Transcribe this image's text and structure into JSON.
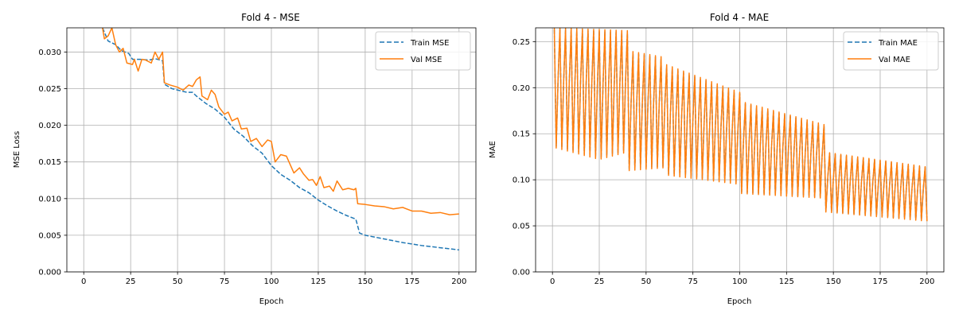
{
  "chart_data": [
    {
      "type": "line",
      "title": "Fold 4 - MSE",
      "xlabel": "Epoch",
      "ylabel": "MSE Loss",
      "xlim": [
        -9,
        209
      ],
      "ylim": [
        0,
        0.0333
      ],
      "xticks": [
        0,
        25,
        50,
        75,
        100,
        125,
        150,
        175,
        200
      ],
      "xtick_labels": [
        "0",
        "25",
        "50",
        "75",
        "100",
        "125",
        "150",
        "175",
        "200"
      ],
      "yticks": [
        0,
        0.005,
        0.01,
        0.015,
        0.02,
        0.025,
        0.03
      ],
      "ytick_labels": [
        "0.000",
        "0.005",
        "0.010",
        "0.015",
        "0.020",
        "0.025",
        "0.030"
      ],
      "grid": true,
      "legend": "top-right",
      "series": [
        {
          "name": "Train MSE",
          "color": "#1f77b4",
          "dash": "dashed",
          "points": [
            [
              10,
              0.0333
            ],
            [
              13,
              0.0315
            ],
            [
              17,
              0.031
            ],
            [
              20,
              0.0302
            ],
            [
              24,
              0.0298
            ],
            [
              26,
              0.029
            ],
            [
              30,
              0.029
            ],
            [
              35,
              0.0289
            ],
            [
              38,
              0.0291
            ],
            [
              42,
              0.0288
            ],
            [
              43,
              0.0256
            ],
            [
              47,
              0.025
            ],
            [
              55,
              0.0245
            ],
            [
              58,
              0.0245
            ],
            [
              60,
              0.024
            ],
            [
              65,
              0.023
            ],
            [
              70,
              0.0222
            ],
            [
              75,
              0.0211
            ],
            [
              80,
              0.0195
            ],
            [
              85,
              0.0185
            ],
            [
              90,
              0.0172
            ],
            [
              95,
              0.0162
            ],
            [
              100,
              0.0145
            ],
            [
              105,
              0.0133
            ],
            [
              110,
              0.0125
            ],
            [
              115,
              0.0115
            ],
            [
              120,
              0.0108
            ],
            [
              125,
              0.0098
            ],
            [
              130,
              0.009
            ],
            [
              135,
              0.0083
            ],
            [
              140,
              0.0077
            ],
            [
              145,
              0.0072
            ],
            [
              147,
              0.0053
            ],
            [
              150,
              0.005
            ],
            [
              160,
              0.0045
            ],
            [
              170,
              0.004
            ],
            [
              180,
              0.0036
            ],
            [
              190,
              0.0033
            ],
            [
              200,
              0.003
            ]
          ]
        },
        {
          "name": "Val MSE",
          "color": "#ff7f0e",
          "dash": "solid",
          "points": [
            [
              10,
              0.0333
            ],
            [
              11,
              0.0318
            ],
            [
              13,
              0.0322
            ],
            [
              15,
              0.0333
            ],
            [
              17,
              0.031
            ],
            [
              19,
              0.03
            ],
            [
              21,
              0.0305
            ],
            [
              23,
              0.0285
            ],
            [
              26,
              0.0283
            ],
            [
              27,
              0.029
            ],
            [
              29,
              0.0274
            ],
            [
              31,
              0.029
            ],
            [
              33,
              0.0289
            ],
            [
              36,
              0.0285
            ],
            [
              38,
              0.03
            ],
            [
              40,
              0.029
            ],
            [
              42,
              0.03
            ],
            [
              43,
              0.0258
            ],
            [
              46,
              0.0255
            ],
            [
              50,
              0.0252
            ],
            [
              53,
              0.0248
            ],
            [
              56,
              0.0255
            ],
            [
              58,
              0.0253
            ],
            [
              60,
              0.0262
            ],
            [
              62,
              0.0266
            ],
            [
              63,
              0.024
            ],
            [
              66,
              0.0235
            ],
            [
              68,
              0.0248
            ],
            [
              70,
              0.0242
            ],
            [
              72,
              0.0225
            ],
            [
              75,
              0.0215
            ],
            [
              77,
              0.0218
            ],
            [
              79,
              0.0206
            ],
            [
              82,
              0.021
            ],
            [
              84,
              0.0195
            ],
            [
              87,
              0.0196
            ],
            [
              89,
              0.0178
            ],
            [
              92,
              0.0182
            ],
            [
              95,
              0.0171
            ],
            [
              98,
              0.018
            ],
            [
              100,
              0.0178
            ],
            [
              102,
              0.015
            ],
            [
              105,
              0.016
            ],
            [
              108,
              0.0158
            ],
            [
              112,
              0.0135
            ],
            [
              115,
              0.0142
            ],
            [
              117,
              0.0134
            ],
            [
              120,
              0.0125
            ],
            [
              122,
              0.0126
            ],
            [
              124,
              0.0118
            ],
            [
              126,
              0.013
            ],
            [
              128,
              0.0115
            ],
            [
              131,
              0.0117
            ],
            [
              133,
              0.011
            ],
            [
              135,
              0.0124
            ],
            [
              138,
              0.0112
            ],
            [
              141,
              0.0114
            ],
            [
              144,
              0.0112
            ],
            [
              145,
              0.0114
            ],
            [
              146,
              0.0093
            ],
            [
              150,
              0.0092
            ],
            [
              155,
              0.009
            ],
            [
              160,
              0.0089
            ],
            [
              165,
              0.0086
            ],
            [
              170,
              0.0088
            ],
            [
              175,
              0.0083
            ],
            [
              180,
              0.0083
            ],
            [
              185,
              0.008
            ],
            [
              190,
              0.0081
            ],
            [
              195,
              0.0078
            ],
            [
              200,
              0.0079
            ]
          ]
        }
      ]
    },
    {
      "type": "line",
      "title": "Fold 4 - MAE",
      "xlabel": "Epoch",
      "ylabel": "MAE",
      "xlim": [
        -9,
        209
      ],
      "ylim": [
        0,
        0.265
      ],
      "xticks": [
        0,
        25,
        50,
        75,
        100,
        125,
        150,
        175,
        200
      ],
      "xtick_labels": [
        "0",
        "25",
        "50",
        "75",
        "100",
        "125",
        "150",
        "175",
        "200"
      ],
      "yticks": [
        0,
        0.05,
        0.1,
        0.15,
        0.2,
        0.25
      ],
      "ytick_labels": [
        "0.00",
        "0.05",
        "0.10",
        "0.15",
        "0.20",
        "0.25"
      ],
      "grid": true,
      "legend": "top-right",
      "oscillation": {
        "x_start": 1,
        "x_end": 200,
        "step": 1,
        "period_epochs": 3,
        "upper_envelope": [
          [
            1,
            0.265
          ],
          [
            40,
            0.262
          ],
          [
            41,
            0.24
          ],
          [
            60,
            0.233
          ],
          [
            61,
            0.225
          ],
          [
            100,
            0.195
          ],
          [
            101,
            0.185
          ],
          [
            145,
            0.16
          ],
          [
            146,
            0.13
          ],
          [
            200,
            0.114
          ]
        ],
        "lower_envelope": [
          [
            1,
            0.135
          ],
          [
            25,
            0.122
          ],
          [
            40,
            0.13
          ],
          [
            41,
            0.11
          ],
          [
            60,
            0.113
          ],
          [
            61,
            0.105
          ],
          [
            100,
            0.095
          ],
          [
            101,
            0.085
          ],
          [
            145,
            0.08
          ],
          [
            146,
            0.065
          ],
          [
            200,
            0.055
          ]
        ]
      },
      "series": [
        {
          "name": "Train MAE",
          "color": "#1f77b4",
          "dash": "dashed",
          "scale": 0.97
        },
        {
          "name": "Val MAE",
          "color": "#ff7f0e",
          "dash": "solid",
          "scale": 1.0
        }
      ]
    }
  ]
}
